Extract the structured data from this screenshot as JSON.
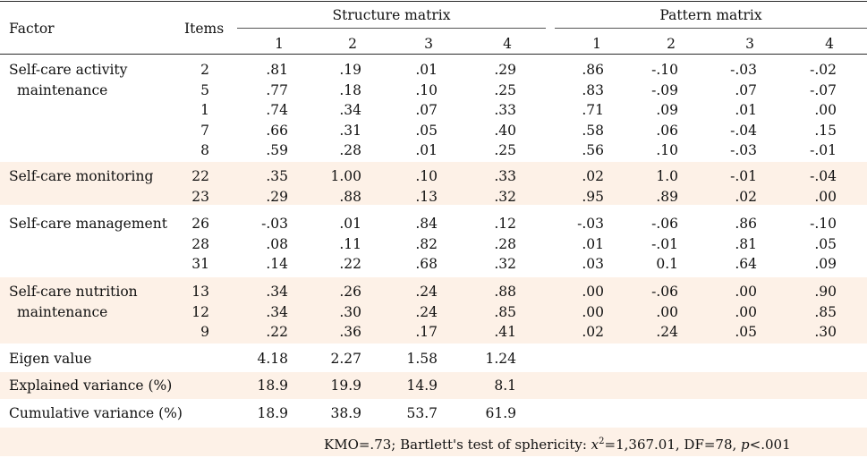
{
  "header": {
    "factor": "Factor",
    "items": "Items",
    "structure": "Structure matrix",
    "pattern": "Pattern matrix",
    "cols": [
      "1",
      "2",
      "3",
      "4"
    ]
  },
  "groups": [
    {
      "label": [
        "Self-care activity",
        "maintenance"
      ],
      "rows": [
        {
          "item": "2",
          "s": [
            ".81",
            ".19",
            ".01",
            ".29"
          ],
          "p": [
            ".86",
            "-.10",
            "-.03",
            "-.02"
          ]
        },
        {
          "item": "5",
          "s": [
            ".77",
            ".18",
            ".10",
            ".25"
          ],
          "p": [
            ".83",
            "-.09",
            ".07",
            "-.07"
          ]
        },
        {
          "item": "1",
          "s": [
            ".74",
            ".34",
            ".07",
            ".33"
          ],
          "p": [
            ".71",
            ".09",
            ".01",
            ".00"
          ]
        },
        {
          "item": "7",
          "s": [
            ".66",
            ".31",
            ".05",
            ".40"
          ],
          "p": [
            ".58",
            ".06",
            "-.04",
            ".15"
          ]
        },
        {
          "item": "8",
          "s": [
            ".59",
            ".28",
            ".01",
            ".25"
          ],
          "p": [
            ".56",
            ".10",
            "-.03",
            "-.01"
          ]
        }
      ]
    },
    {
      "label": [
        "Self-care monitoring"
      ],
      "rows": [
        {
          "item": "22",
          "s": [
            ".35",
            "1.00",
            ".10",
            ".33"
          ],
          "p": [
            ".02",
            "1.0",
            "-.01",
            "-.04"
          ]
        },
        {
          "item": "23",
          "s": [
            ".29",
            ".88",
            ".13",
            ".32"
          ],
          "p": [
            ".95",
            ".89",
            ".02",
            ".00"
          ]
        }
      ]
    },
    {
      "label": [
        "Self-care management"
      ],
      "rows": [
        {
          "item": "26",
          "s": [
            "-.03",
            ".01",
            ".84",
            ".12"
          ],
          "p": [
            "-.03",
            "-.06",
            ".86",
            "-.10"
          ]
        },
        {
          "item": "28",
          "s": [
            ".08",
            ".11",
            ".82",
            ".28"
          ],
          "p": [
            ".01",
            "-.01",
            ".81",
            ".05"
          ]
        },
        {
          "item": "31",
          "s": [
            ".14",
            ".22",
            ".68",
            ".32"
          ],
          "p": [
            ".03",
            "0.1",
            ".64",
            ".09"
          ]
        }
      ]
    },
    {
      "label": [
        "Self-care nutrition",
        "maintenance"
      ],
      "rows": [
        {
          "item": "13",
          "s": [
            ".34",
            ".26",
            ".24",
            ".88"
          ],
          "p": [
            ".00",
            "-.06",
            ".00",
            ".90"
          ]
        },
        {
          "item": "12",
          "s": [
            ".34",
            ".30",
            ".24",
            ".85"
          ],
          "p": [
            ".00",
            ".00",
            ".00",
            ".85"
          ]
        },
        {
          "item": "9",
          "s": [
            ".22",
            ".36",
            ".17",
            ".41"
          ],
          "p": [
            ".02",
            ".24",
            ".05",
            ".30"
          ]
        }
      ]
    }
  ],
  "summary": [
    {
      "label": "Eigen value",
      "values": [
        "4.18",
        "2.27",
        "1.58",
        "1.24"
      ]
    },
    {
      "label": "Explained variance (%)",
      "values": [
        "18.9",
        "19.9",
        "14.9",
        "8.1"
      ]
    },
    {
      "label": "Cumulative variance (%)",
      "values": [
        "18.9",
        "38.9",
        "53.7",
        "61.9"
      ]
    }
  ],
  "footnote": {
    "part1": "KMO=.73; Bartlett's test of sphericity: ",
    "chi": "x",
    "sup": "2",
    "part2": "=1,367.01, DF=78, ",
    "p": "p",
    "part3": "<.001"
  }
}
